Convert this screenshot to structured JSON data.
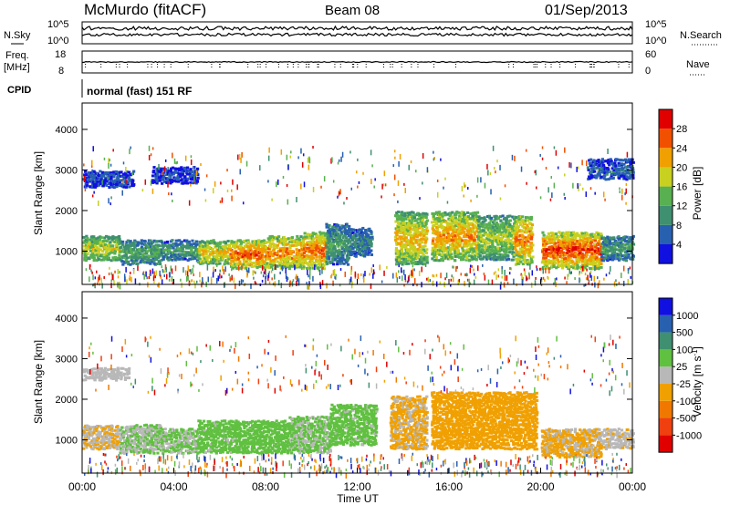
{
  "header": {
    "site": "McMurdo (fitACF)",
    "beam": "Beam 08",
    "date": "01/Sep/2013"
  },
  "noise_panel": {
    "left_label": "N.Sky",
    "right_label": "N.Search",
    "left_ticks": [
      "10^5",
      "10^0"
    ],
    "right_ticks": [
      "10^5",
      "10^0"
    ]
  },
  "freq_panel": {
    "left_label_1": "Freq.",
    "left_label_2": "[MHz]",
    "right_label": "Nave",
    "left_ticks": [
      "18",
      "8"
    ],
    "right_ticks": [
      "60",
      "0"
    ]
  },
  "cpid_panel": {
    "label": "CPID",
    "value": "normal (fast) 151 RF"
  },
  "axes": {
    "ylabel": "Slant Range [km]",
    "xlabel": "Time UT",
    "y_ticks": [
      "1000",
      "2000",
      "3000",
      "4000"
    ],
    "x_ticks": [
      "00:00",
      "04:00",
      "08:00",
      "12:00",
      "16:00",
      "20:00",
      "00:00"
    ]
  },
  "colors": {
    "power_scale": [
      "#1010e0",
      "#2860b0",
      "#3f9070",
      "#58b050",
      "#c8d020",
      "#f0a000",
      "#f05000",
      "#e00000"
    ],
    "velocity_scale": [
      "#e00000",
      "#f04010",
      "#f07800",
      "#f0a000",
      "#b8b8b8",
      "#60c040",
      "#3f9070",
      "#2860b0",
      "#1010e0"
    ],
    "ground_scatter": "#b0b0b0"
  },
  "chart_data": [
    {
      "type": "heatmap",
      "title": "",
      "xlabel": "Time UT",
      "ylabel": "Slant Range [km]",
      "xlim": [
        0,
        24
      ],
      "ylim": [
        180,
        4650
      ],
      "colorbar_label": "Power [dB]",
      "colorbar_ticks": [
        "4",
        "8",
        "12",
        "16",
        "20",
        "24",
        "28"
      ],
      "colorbar_range": [
        0,
        32
      ],
      "blobs": [
        {
          "t0": 0.0,
          "t1": 1.6,
          "r0": 800,
          "r1": 1400,
          "level": 20
        },
        {
          "t0": 1.6,
          "t1": 3.4,
          "r0": 700,
          "r1": 1300,
          "level": 14
        },
        {
          "t0": 3.4,
          "t1": 5.0,
          "r0": 800,
          "r1": 1300,
          "level": 12
        },
        {
          "t0": 5.0,
          "t1": 6.4,
          "r0": 700,
          "r1": 1300,
          "level": 22
        },
        {
          "t0": 6.4,
          "t1": 8.0,
          "r0": 600,
          "r1": 1300,
          "level": 28
        },
        {
          "t0": 8.0,
          "t1": 9.6,
          "r0": 600,
          "r1": 1400,
          "level": 26
        },
        {
          "t0": 9.6,
          "t1": 10.6,
          "r0": 600,
          "r1": 1500,
          "level": 27
        },
        {
          "t0": 10.6,
          "t1": 11.6,
          "r0": 700,
          "r1": 1700,
          "level": 12
        },
        {
          "t0": 11.6,
          "t1": 12.6,
          "r0": 900,
          "r1": 1600,
          "level": 10
        },
        {
          "t0": 13.6,
          "t1": 15.0,
          "r0": 700,
          "r1": 2000,
          "level": 22
        },
        {
          "t0": 15.2,
          "t1": 17.2,
          "r0": 800,
          "r1": 2000,
          "level": 24
        },
        {
          "t0": 17.2,
          "t1": 18.8,
          "r0": 800,
          "r1": 1900,
          "level": 18
        },
        {
          "t0": 18.8,
          "t1": 19.6,
          "r0": 700,
          "r1": 1900,
          "level": 26
        },
        {
          "t0": 20.0,
          "t1": 22.6,
          "r0": 600,
          "r1": 1500,
          "level": 29
        },
        {
          "t0": 22.6,
          "t1": 24.0,
          "r0": 800,
          "r1": 1400,
          "level": 12
        },
        {
          "t0": 0.0,
          "t1": 2.2,
          "r0": 2600,
          "r1": 3000,
          "level": 6
        },
        {
          "t0": 3.0,
          "t1": 5.0,
          "r0": 2700,
          "r1": 3100,
          "level": 5
        },
        {
          "t0": 22.0,
          "t1": 24.0,
          "r0": 2800,
          "r1": 3300,
          "level": 7
        }
      ]
    },
    {
      "type": "heatmap",
      "title": "",
      "xlabel": "Time UT",
      "ylabel": "Slant Range [km]",
      "xlim": [
        0,
        24
      ],
      "ylim": [
        180,
        4650
      ],
      "colorbar_label": "Velocity [m s^-1]",
      "colorbar_ticks": [
        "-1000",
        "-500",
        "-100",
        "-25",
        "25",
        "100",
        "500",
        "1000"
      ],
      "colorbar_range": [
        -1500,
        1500
      ],
      "blobs": [
        {
          "t0": 0.0,
          "t1": 1.6,
          "r0": 800,
          "r1": 1400,
          "level": -150
        },
        {
          "t0": 1.6,
          "t1": 3.4,
          "r0": 700,
          "r1": 1400,
          "level": 150
        },
        {
          "t0": 3.4,
          "t1": 5.0,
          "r0": 700,
          "r1": 1300,
          "level": 200
        },
        {
          "t0": 5.0,
          "t1": 7.0,
          "r0": 700,
          "r1": 1500,
          "level": 250
        },
        {
          "t0": 7.0,
          "t1": 9.0,
          "r0": 700,
          "r1": 1500,
          "level": 300
        },
        {
          "t0": 9.0,
          "t1": 10.8,
          "r0": 700,
          "r1": 1600,
          "level": 200
        },
        {
          "t0": 10.8,
          "t1": 12.8,
          "r0": 900,
          "r1": 1900,
          "level": 250
        },
        {
          "t0": 13.4,
          "t1": 15.0,
          "r0": 800,
          "r1": 2100,
          "level": -200
        },
        {
          "t0": 15.2,
          "t1": 19.8,
          "r0": 800,
          "r1": 2200,
          "level": -300
        },
        {
          "t0": 20.0,
          "t1": 22.6,
          "r0": 600,
          "r1": 1300,
          "level": -200
        },
        {
          "t0": 22.6,
          "t1": 24.0,
          "r0": 800,
          "r1": 1300,
          "level": -100
        },
        {
          "t0": 0.0,
          "t1": 2.0,
          "r0": 2500,
          "r1": 2800,
          "level": 0
        }
      ]
    }
  ]
}
